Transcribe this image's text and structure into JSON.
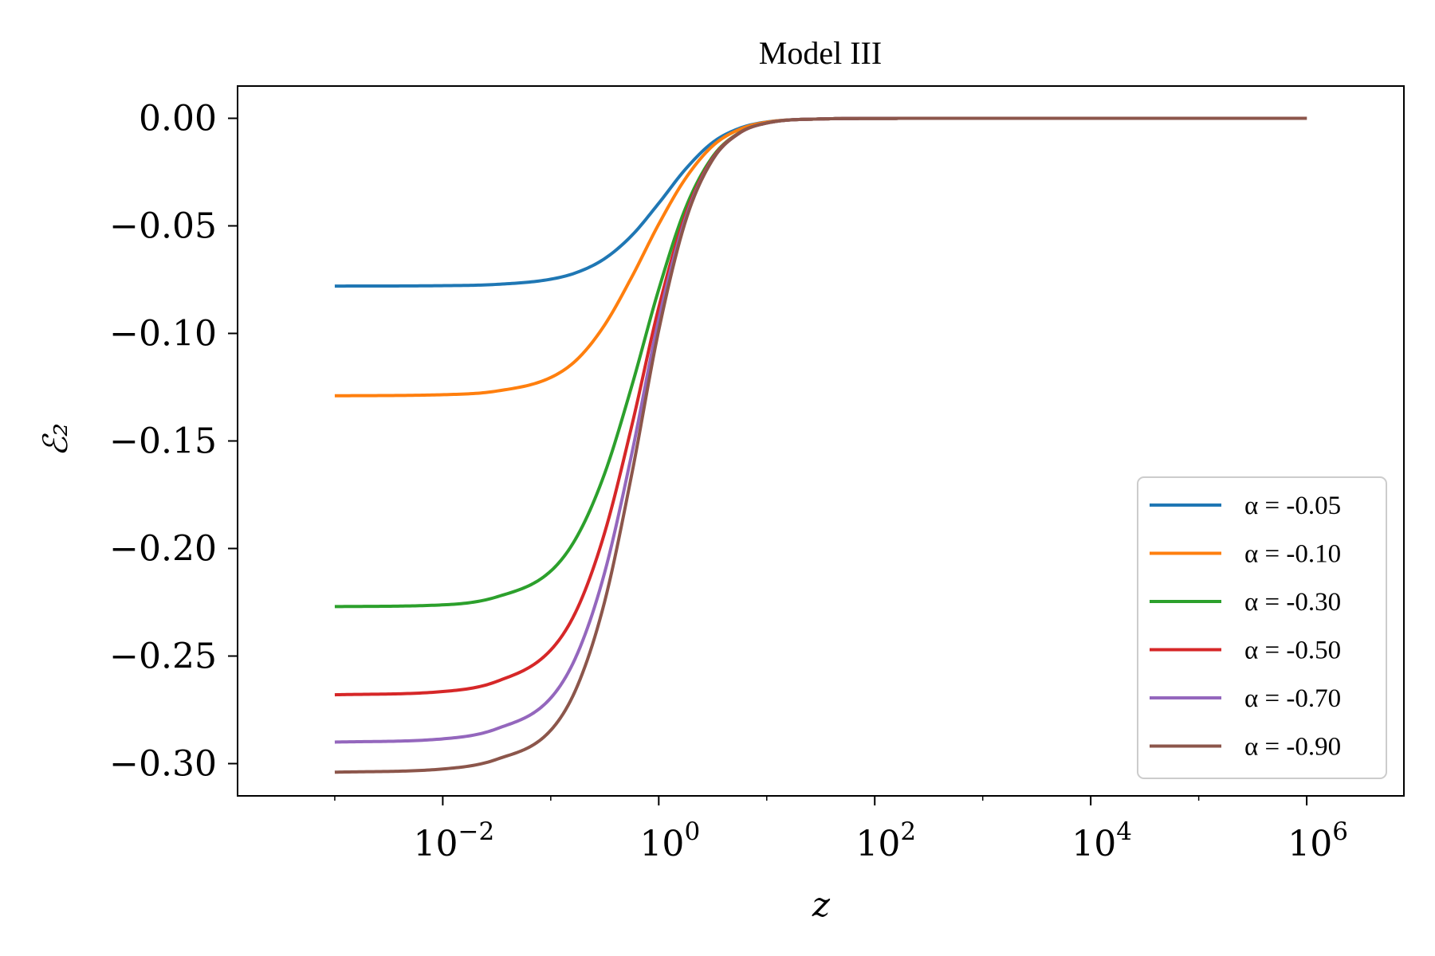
{
  "chart_data": {
    "type": "line",
    "title": "Model III",
    "xlabel": "z",
    "ylabel": "ℰ₂",
    "xscale": "log",
    "xlim_log10": [
      -3.9,
      6.9
    ],
    "ylim": [
      -0.315,
      0.015
    ],
    "grid": false,
    "legend_position": "lower-right",
    "x_ticks": [
      {
        "exp": -2,
        "base": "10",
        "sup": "−2"
      },
      {
        "exp": 0,
        "base": "10",
        "sup": "0"
      },
      {
        "exp": 2,
        "base": "10",
        "sup": "2"
      },
      {
        "exp": 4,
        "base": "10",
        "sup": "4"
      },
      {
        "exp": 6,
        "base": "10",
        "sup": "6"
      }
    ],
    "y_ticks": [
      {
        "value": 0.0,
        "label": "0.00"
      },
      {
        "value": -0.05,
        "label": "−0.05"
      },
      {
        "value": -0.1,
        "label": "−0.10"
      },
      {
        "value": -0.15,
        "label": "−0.15"
      },
      {
        "value": -0.2,
        "label": "−0.20"
      },
      {
        "value": -0.25,
        "label": "−0.25"
      },
      {
        "value": -0.3,
        "label": "−0.30"
      }
    ],
    "x_log10": [
      -3,
      -2,
      -1.5,
      -1,
      -0.75,
      -0.5,
      -0.25,
      0,
      0.25,
      0.5,
      0.75,
      1,
      1.5,
      2,
      3,
      6
    ],
    "series": [
      {
        "name": "α = -0.05",
        "color": "#1f77b4",
        "values": [
          -0.078,
          -0.0778,
          -0.0772,
          -0.0748,
          -0.0715,
          -0.0652,
          -0.0545,
          -0.0395,
          -0.0235,
          -0.0112,
          -0.0046,
          -0.0017,
          -0.0003,
          -5e-05,
          0,
          0
        ]
      },
      {
        "name": "α = -0.10",
        "color": "#ff7f0e",
        "values": [
          -0.129,
          -0.1285,
          -0.1268,
          -0.1205,
          -0.1118,
          -0.096,
          -0.0738,
          -0.0492,
          -0.0278,
          -0.0128,
          -0.0051,
          -0.0018,
          -0.0003,
          -5e-05,
          0,
          0
        ]
      },
      {
        "name": "α = -0.30",
        "color": "#2ca02c",
        "values": [
          -0.227,
          -0.2262,
          -0.2225,
          -0.2105,
          -0.1938,
          -0.165,
          -0.1245,
          -0.0795,
          -0.0415,
          -0.0178,
          -0.0066,
          -0.0022,
          -0.0003,
          -5e-05,
          0,
          0
        ]
      },
      {
        "name": "α = -0.50",
        "color": "#d62728",
        "values": [
          -0.268,
          -0.2665,
          -0.2618,
          -0.2472,
          -0.2275,
          -0.1925,
          -0.143,
          -0.088,
          -0.0445,
          -0.0185,
          -0.0067,
          -0.0022,
          -0.0003,
          -5e-05,
          0,
          0
        ]
      },
      {
        "name": "α = -0.70",
        "color": "#9467bd",
        "values": [
          -0.29,
          -0.2885,
          -0.2838,
          -0.2695,
          -0.2485,
          -0.211,
          -0.156,
          -0.0935,
          -0.0462,
          -0.019,
          -0.0068,
          -0.0022,
          -0.0003,
          -5e-05,
          0,
          0
        ]
      },
      {
        "name": "α = -0.90",
        "color": "#8c564b",
        "values": [
          -0.304,
          -0.3025,
          -0.298,
          -0.2845,
          -0.2635,
          -0.2245,
          -0.1655,
          -0.0985,
          -0.0475,
          -0.0192,
          -0.0068,
          -0.0022,
          -0.0003,
          -5e-05,
          0,
          0
        ]
      }
    ]
  }
}
